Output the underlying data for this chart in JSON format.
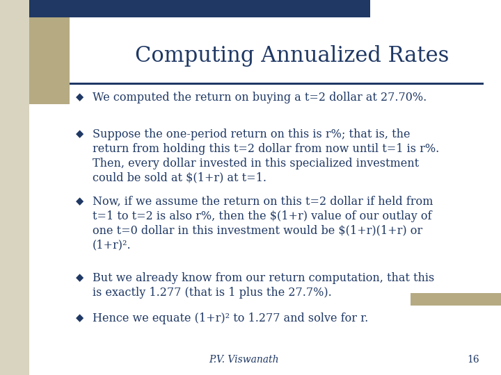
{
  "title": "Computing Annualized Rates",
  "title_color": "#1F3864",
  "title_fontsize": 22,
  "background_color": "#FFFFFF",
  "left_stripe_color": "#D8D4C0",
  "left_tan_rect_color": "#B5AA82",
  "top_bar_color": "#1F3864",
  "right_accent_color": "#B5AA82",
  "divider_color": "#1F3864",
  "bullet_color": "#1F3864",
  "text_color": "#1F3864",
  "footer_text": "P.V. Viswanath",
  "page_number": "16",
  "font_size": 11.5,
  "bullets": [
    "We computed the return on buying a t=2 dollar at 27.70%.",
    "Suppose the one-period return on this is r%; that is, the\nreturn from holding this t=2 dollar from now until t=1 is r%.\nThen, every dollar invested in this specialized investment\ncould be sold at $(1+r) at t=1.",
    "Now, if we assume the return on this t=2 dollar if held from\nt=1 to t=2 is also r%, then the $(1+r) value of our outlay of\none t=0 dollar in this investment would be $(1+r)(1+r) or\n(1+r)².",
    "But we already know from our return computation, that this\nis exactly 1.277 (that is 1 plus the 27.7%).",
    "Hence we equate (1+r)² to 1.277 and solve for r."
  ]
}
